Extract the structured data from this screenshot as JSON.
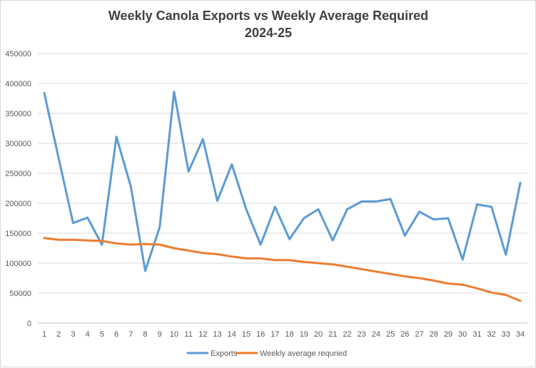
{
  "chart_data": {
    "type": "line",
    "title": [
      "Weekly Canola Exports vs Weekly Average Required",
      "2024-25"
    ],
    "xlabel": "",
    "ylabel": "",
    "categories": [
      "1",
      "2",
      "3",
      "4",
      "5",
      "6",
      "7",
      "8",
      "9",
      "10",
      "11",
      "12",
      "13",
      "14",
      "15",
      "16",
      "17",
      "18",
      "19",
      "20",
      "21",
      "22",
      "23",
      "24",
      "25",
      "26",
      "27",
      "28",
      "29",
      "30",
      "31",
      "32",
      "33",
      "34"
    ],
    "y_ticks": [
      "0",
      "50000",
      "100000",
      "150000",
      "200000",
      "250000",
      "300000",
      "350000",
      "400000",
      "450000"
    ],
    "ylim": [
      0,
      450000
    ],
    "grid": true,
    "legend_position": "bottom",
    "series": [
      {
        "name": "Exports",
        "color": "#5b9bd5",
        "values": [
          384000,
          275000,
          167000,
          176000,
          131000,
          311000,
          228000,
          87000,
          160000,
          386000,
          253000,
          307000,
          204000,
          265000,
          190000,
          131000,
          194000,
          140000,
          175000,
          190000,
          138000,
          190000,
          203000,
          203000,
          207000,
          146000,
          186000,
          173000,
          175000,
          106000,
          198000,
          194000,
          114000,
          234000
        ]
      },
      {
        "name": "Weekly average requried",
        "color": "#ed7d31",
        "values": [
          142000,
          139000,
          139000,
          138000,
          137000,
          133000,
          131000,
          132000,
          131000,
          125000,
          121000,
          117000,
          115000,
          111000,
          108000,
          108000,
          105000,
          105000,
          102000,
          100000,
          98000,
          94000,
          90000,
          86000,
          82000,
          78000,
          75000,
          71000,
          66000,
          64000,
          58000,
          51000,
          47000,
          37000
        ]
      }
    ]
  }
}
